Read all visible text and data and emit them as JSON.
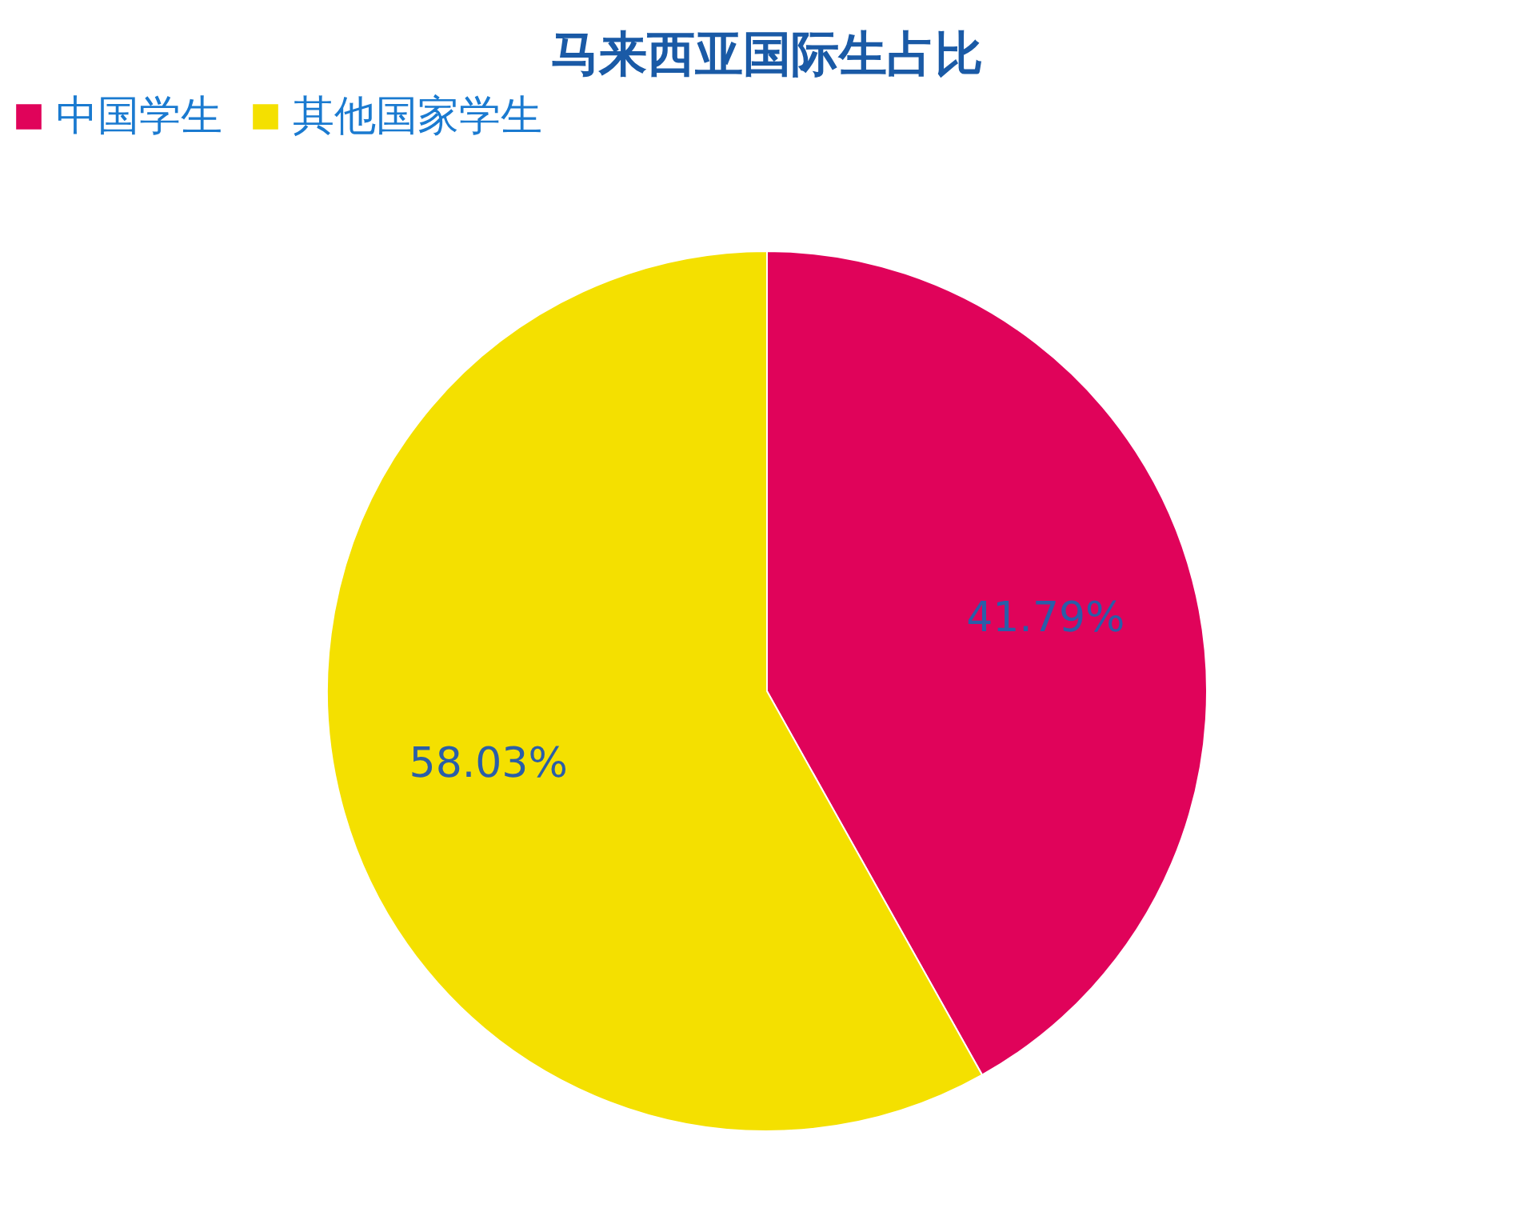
{
  "chart_data": {
    "type": "pie",
    "title": "马来西亚国际生占比",
    "categories": [
      "中国学生",
      "其他国家学生"
    ],
    "values": [
      41.79,
      58.03
    ],
    "colors": [
      "#e0035a",
      "#f4e000"
    ],
    "value_labels": [
      "41.79%",
      "58.03%"
    ],
    "legend": "top"
  }
}
